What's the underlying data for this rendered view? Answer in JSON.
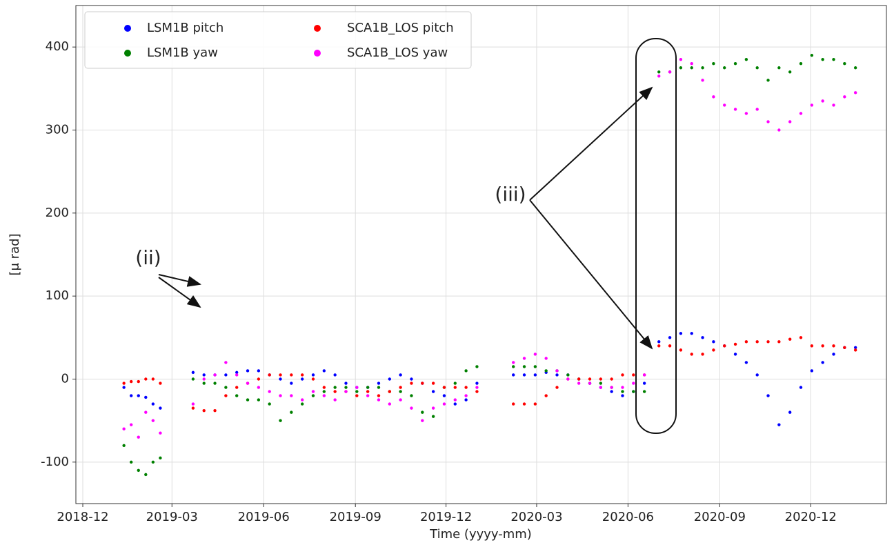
{
  "chart_data": {
    "type": "scatter",
    "xlabel": "Time (yyyy-mm)",
    "ylabel": "[μ rad]",
    "xlim": [
      2018.898,
      2021.125
    ],
    "ylim": [
      -150,
      450
    ],
    "xticks": [
      {
        "value": 2018.917,
        "label": "2018-12"
      },
      {
        "value": 2019.162,
        "label": "2019-03"
      },
      {
        "value": 2019.414,
        "label": "2019-06"
      },
      {
        "value": 2019.666,
        "label": "2019-09"
      },
      {
        "value": 2019.915,
        "label": "2019-12"
      },
      {
        "value": 2020.164,
        "label": "2020-03"
      },
      {
        "value": 2020.415,
        "label": "2020-06"
      },
      {
        "value": 2020.667,
        "label": "2020-09"
      },
      {
        "value": 2020.917,
        "label": "2020-12"
      }
    ],
    "yticks": [
      -100,
      0,
      100,
      200,
      300,
      400
    ],
    "grid": true,
    "legend": "upper left",
    "x": [
      2019.03,
      2019.05,
      2019.07,
      2019.09,
      2019.11,
      2019.13,
      2019.22,
      2019.25,
      2019.28,
      2019.31,
      2019.34,
      2019.37,
      2019.4,
      2019.43,
      2019.46,
      2019.49,
      2019.52,
      2019.55,
      2019.58,
      2019.61,
      2019.64,
      2019.67,
      2019.7,
      2019.73,
      2019.76,
      2019.79,
      2019.82,
      2019.85,
      2019.88,
      2019.91,
      2019.94,
      2019.97,
      2020.0,
      2020.1,
      2020.13,
      2020.16,
      2020.19,
      2020.22,
      2020.25,
      2020.28,
      2020.31,
      2020.34,
      2020.37,
      2020.4,
      2020.43,
      2020.46,
      2020.5,
      2020.53,
      2020.56,
      2020.59,
      2020.62,
      2020.65,
      2020.68,
      2020.71,
      2020.74,
      2020.77,
      2020.8,
      2020.83,
      2020.86,
      2020.89,
      2020.92,
      2020.95,
      2020.98,
      2021.01,
      2021.04
    ],
    "series": [
      {
        "name": "LSM1B pitch",
        "color": "#0000ff",
        "values": [
          -10,
          -20,
          -20,
          -22,
          -30,
          -35,
          8,
          5,
          5,
          5,
          8,
          10,
          10,
          5,
          0,
          -5,
          0,
          5,
          10,
          5,
          -5,
          -10,
          -10,
          -5,
          0,
          5,
          0,
          -5,
          -15,
          -20,
          -30,
          -25,
          -5,
          5,
          5,
          5,
          8,
          5,
          5,
          0,
          -5,
          -10,
          -15,
          -20,
          -15,
          -5,
          45,
          50,
          55,
          55,
          50,
          45,
          40,
          30,
          20,
          5,
          -20,
          -55,
          -40,
          -10,
          10,
          20,
          30,
          38,
          38
        ]
      },
      {
        "name": "LSM1B yaw",
        "color": "#008000",
        "values": [
          -80,
          -100,
          -110,
          -115,
          -100,
          -95,
          0,
          -5,
          -5,
          -10,
          -20,
          -25,
          -25,
          -30,
          -50,
          -40,
          -30,
          -20,
          -15,
          -10,
          -10,
          -15,
          -10,
          -10,
          -15,
          -15,
          -20,
          -40,
          -45,
          -10,
          -5,
          10,
          15,
          15,
          15,
          15,
          10,
          10,
          5,
          0,
          -5,
          -5,
          -10,
          -15,
          -15,
          -15,
          370,
          370,
          375,
          375,
          375,
          380,
          375,
          380,
          385,
          375,
          360,
          375,
          370,
          380,
          390,
          385,
          385,
          380,
          375
        ]
      },
      {
        "name": "SCA1B_LOS pitch",
        "color": "#ff0000",
        "values": [
          -5,
          -3,
          -3,
          0,
          0,
          -5,
          -35,
          -38,
          -38,
          -20,
          -10,
          -5,
          0,
          5,
          5,
          5,
          5,
          0,
          -10,
          -15,
          -15,
          -20,
          -15,
          -20,
          -15,
          -10,
          -5,
          -5,
          -5,
          -10,
          -10,
          -10,
          -15,
          -30,
          -30,
          -30,
          -20,
          -10,
          0,
          0,
          0,
          0,
          0,
          5,
          5,
          5,
          40,
          40,
          35,
          30,
          30,
          35,
          40,
          42,
          45,
          45,
          45,
          45,
          48,
          50,
          40,
          40,
          40,
          38,
          35
        ]
      },
      {
        "name": "SCA1B_LOS yaw",
        "color": "#ff00ff",
        "values": [
          -60,
          -55,
          -70,
          -40,
          -50,
          -65,
          -30,
          0,
          5,
          20,
          5,
          -5,
          -10,
          -15,
          -20,
          -20,
          -25,
          -15,
          -20,
          -25,
          -15,
          -10,
          -20,
          -25,
          -30,
          -25,
          -35,
          -50,
          -35,
          -30,
          -25,
          -20,
          -10,
          20,
          25,
          30,
          25,
          10,
          0,
          -5,
          -5,
          -10,
          -10,
          -10,
          -5,
          5,
          365,
          370,
          385,
          380,
          360,
          340,
          330,
          325,
          320,
          325,
          310,
          300,
          310,
          320,
          330,
          335,
          330,
          340,
          345
        ]
      }
    ],
    "annotations": [
      {
        "text": "(ii)"
      },
      {
        "text": "(iii)"
      }
    ]
  }
}
